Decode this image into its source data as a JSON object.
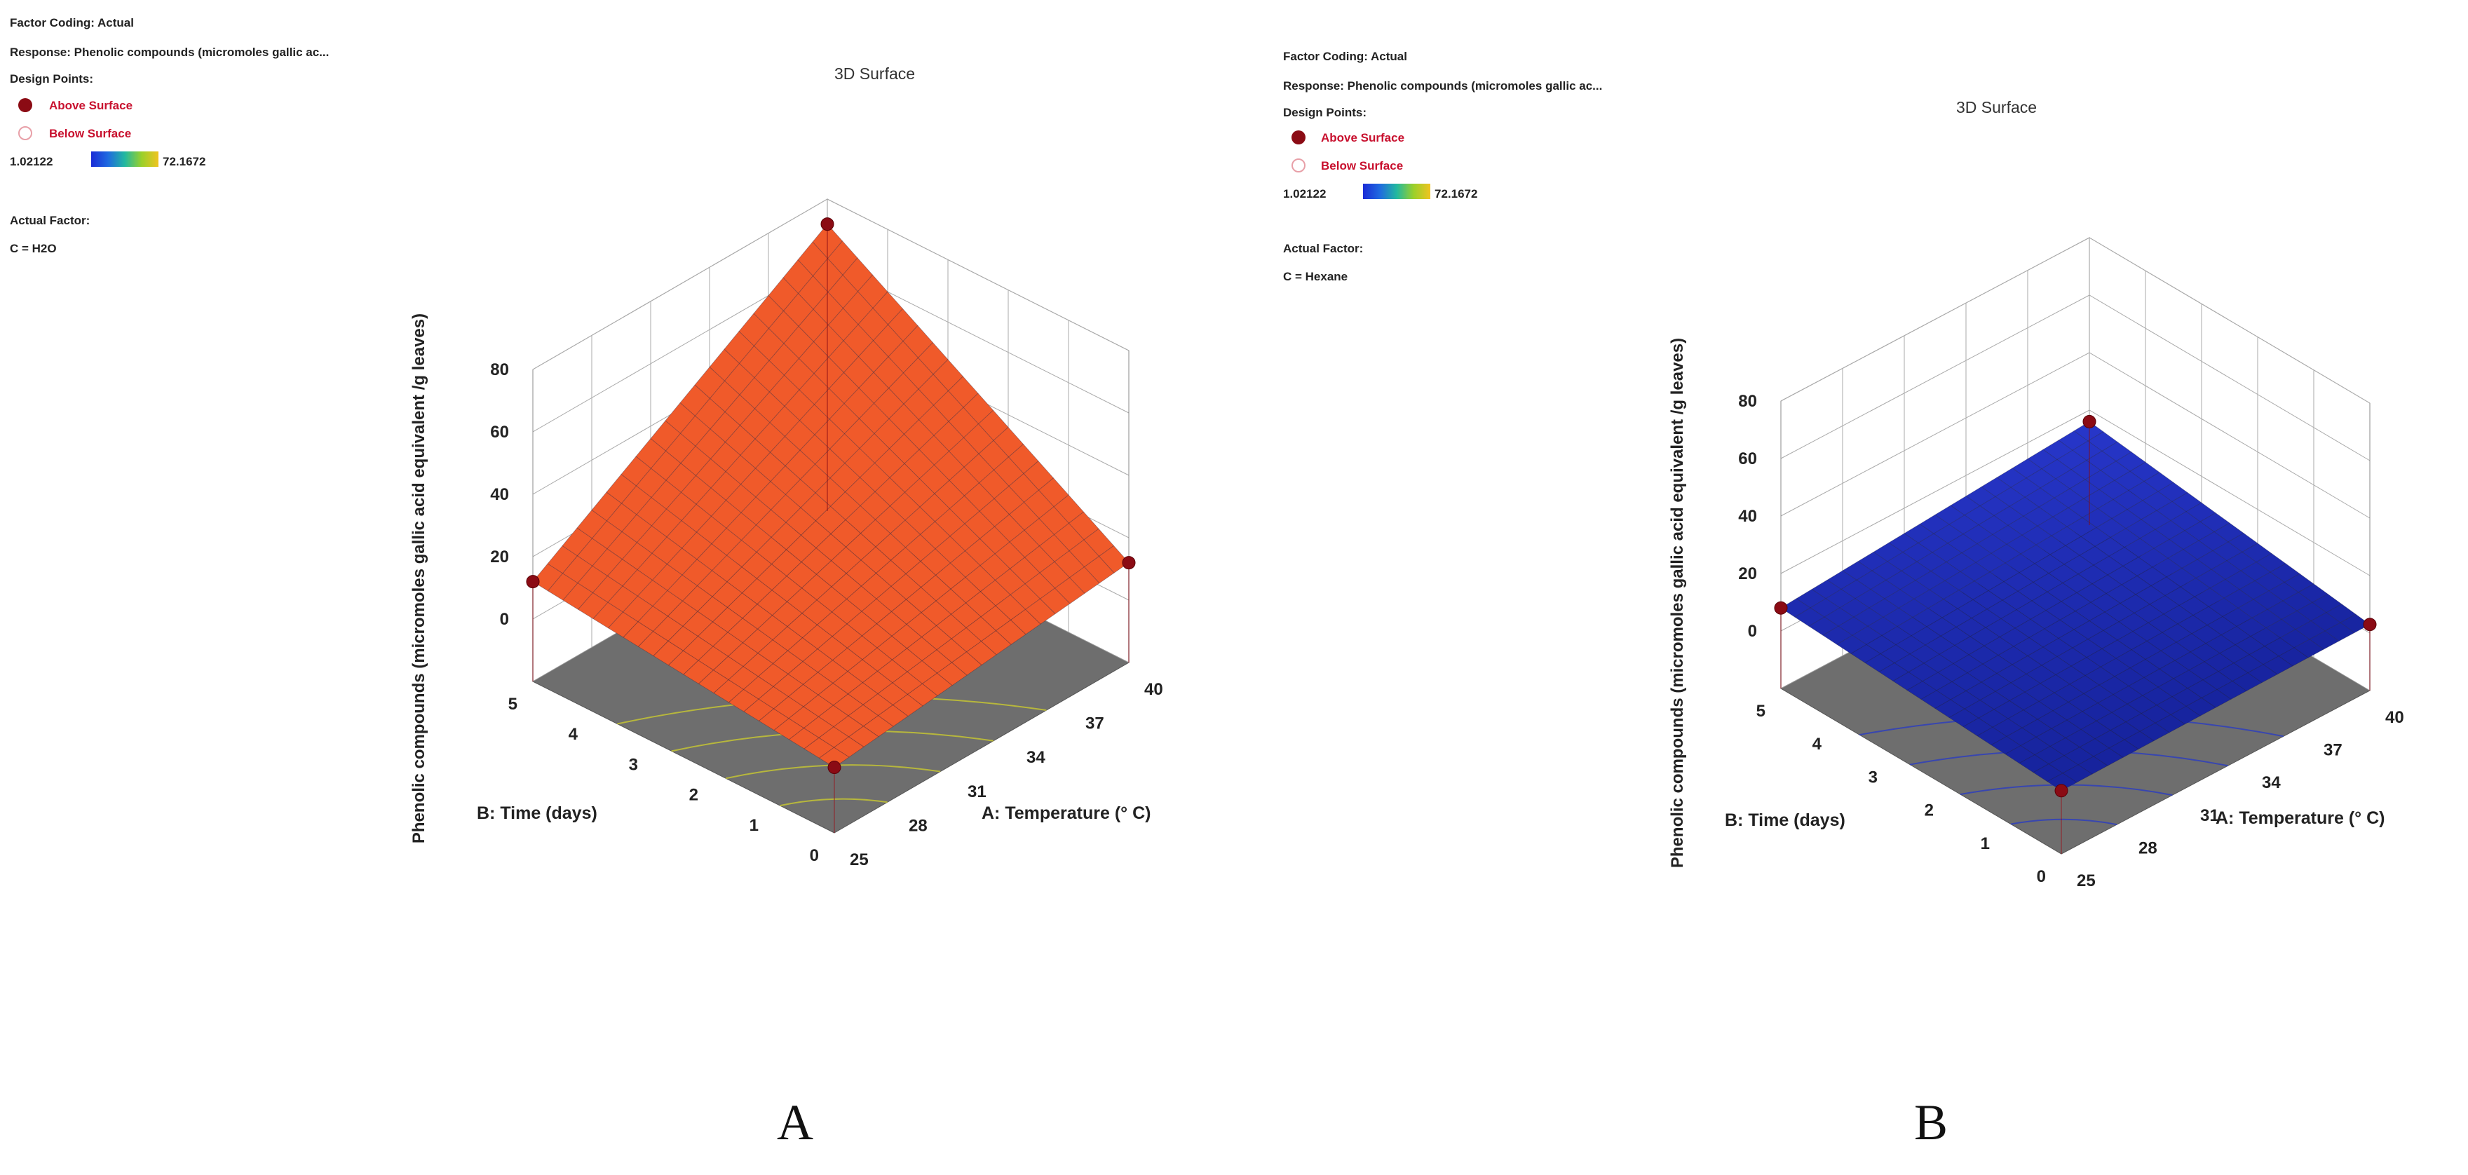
{
  "chart_data": [
    {
      "type": "surface3d",
      "panel_label": "A",
      "title": "3D Surface",
      "factor_coding": "Factor Coding: Actual",
      "response": "Response: Phenolic compounds (micromoles gallic ac...",
      "design_points_label": "Design Points:",
      "legend": {
        "above": "Above Surface",
        "below": "Below Surface"
      },
      "color_range": {
        "min": "1.02122",
        "max": "72.1672"
      },
      "actual_factor_label": "Actual Factor:",
      "actual_factor_value": "C = H2O",
      "zlabel": "Phenolic compounds (micromoles gallic acid equivalent /g leaves)",
      "xlabel": "A: Temperature (° C)",
      "ylabel": "B: Time (days)",
      "x_ticks": [
        "25",
        "28",
        "31",
        "34",
        "37",
        "40"
      ],
      "y_ticks": [
        "0",
        "1",
        "2",
        "3",
        "4",
        "5"
      ],
      "z_ticks": [
        "0",
        "20",
        "40",
        "60",
        "80"
      ],
      "xlim": [
        25,
        40
      ],
      "ylim": [
        0,
        5
      ],
      "zlim": [
        -20,
        80
      ],
      "corners": {
        "t25_d0": 1,
        "t40_d0": 12,
        "t25_d5": 12,
        "t40_d5": 72
      },
      "design_points": [
        {
          "x": 25,
          "y": 0,
          "z": 1
        },
        {
          "x": 40,
          "y": 0,
          "z": 12
        },
        {
          "x": 25,
          "y": 5,
          "z": 12
        },
        {
          "x": 40,
          "y": 5,
          "z": 72
        }
      ],
      "colors": {
        "low": "#1f35d6",
        "high": "#f0602a"
      }
    },
    {
      "type": "surface3d",
      "panel_label": "B",
      "title": "3D Surface",
      "factor_coding": "Factor Coding: Actual",
      "response": "Response: Phenolic compounds (micromoles gallic ac...",
      "design_points_label": "Design Points:",
      "legend": {
        "above": "Above Surface",
        "below": "Below Surface"
      },
      "color_range": {
        "min": "1.02122",
        "max": "72.1672"
      },
      "actual_factor_label": "Actual Factor:",
      "actual_factor_value": "C = Hexane",
      "zlabel": "Phenolic compounds (micromoles gallic acid equivalent /g leaves)",
      "xlabel": "A: Temperature (° C)",
      "ylabel": "B: Time (days)",
      "x_ticks": [
        "25",
        "28",
        "31",
        "34",
        "37",
        "40"
      ],
      "y_ticks": [
        "0",
        "1",
        "2",
        "3",
        "4",
        "5"
      ],
      "z_ticks": [
        "0",
        "20",
        "40",
        "60",
        "80"
      ],
      "xlim": [
        25,
        40
      ],
      "ylim": [
        0,
        5
      ],
      "zlim": [
        -20,
        80
      ],
      "corners": {
        "t25_d0": 2,
        "t40_d0": 3,
        "t25_d5": 8,
        "t40_d5": 16
      },
      "design_points": [
        {
          "x": 25,
          "y": 0,
          "z": 2
        },
        {
          "x": 40,
          "y": 0,
          "z": 3
        },
        {
          "x": 25,
          "y": 5,
          "z": 8
        },
        {
          "x": 40,
          "y": 5,
          "z": 16
        }
      ],
      "colors": {
        "low": "#1a2ab8",
        "high": "#2a3ad0"
      }
    }
  ]
}
